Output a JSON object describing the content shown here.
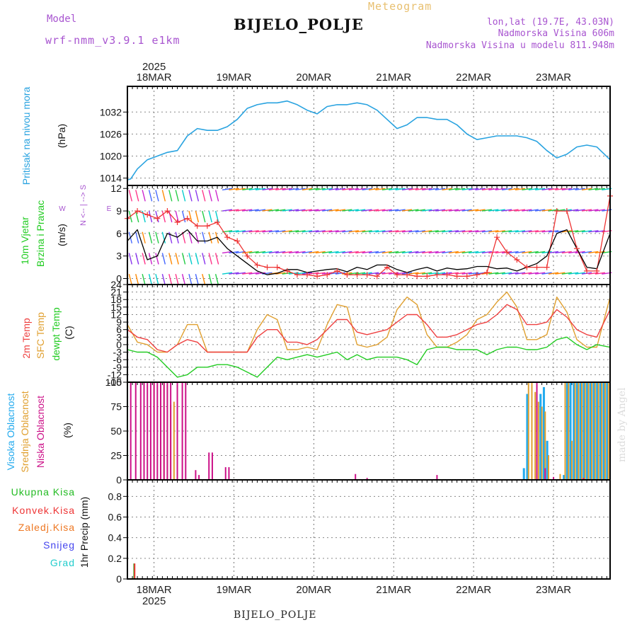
{
  "header": {
    "model_label": "Model",
    "model_name": "wrf-nmm_v3.9.1 e1km",
    "title": "BIJELO_POLJE",
    "subtitle": "Meteogram",
    "lonlat": "lon,lat (19.7E, 43.03N)",
    "elevation": "Nadmorska Visina 606m",
    "model_elevation": "Nadmorska Visina u modelu 811.948m",
    "footer_station": "BIJELO_POLJE",
    "watermark": "made by Angel"
  },
  "time_axis": {
    "year": "2025",
    "days": [
      "18MAR",
      "19MAR",
      "20MAR",
      "21MAR",
      "22MAR",
      "23MAR"
    ]
  },
  "colors": {
    "pressure": "#29a3e0",
    "wind_speed": "#000000",
    "gust": "#ee3333",
    "temp_2m": "#ee4040",
    "temp_sfc": "#e0a030",
    "dewpoint": "#22cc22",
    "cloud_high": "#22aaee",
    "cloud_mid": "#e0a030",
    "cloud_low": "#cc1188",
    "precip_total": "#22bb22",
    "precip_conv": "#ee3333"
  },
  "panels": {
    "pressure": {
      "label": "Pritisak na nivou mora",
      "unit": "(hPa)",
      "ticks": [
        "1014",
        "1020",
        "1026",
        "1032"
      ]
    },
    "wind": {
      "label_1": "10m Vjetar",
      "label_2": "Brzina i Pravac",
      "unit": "(m/s)",
      "ticks": [
        "0",
        "3",
        "6",
        "9",
        "12"
      ],
      "compass_n": "N",
      "compass_s": "S",
      "compass_e": "E",
      "compass_w": "W",
      "compass_arrows": "<-- | -->"
    },
    "temperature": {
      "label_2m": "2m Temp",
      "label_sfc": "SFC Temp",
      "label_dew": "dewpt Temp",
      "unit": "(C)",
      "ticks": [
        "-15",
        "-12",
        "-9",
        "-6",
        "-3",
        "0",
        "3",
        "6",
        "9",
        "12",
        "15",
        "18",
        "21",
        "24"
      ]
    },
    "clouds": {
      "label_high": "Visoka Oblacnost",
      "label_mid": "Srednja Oblacnost",
      "label_low": "Niska Oblacnost",
      "unit": "(%)",
      "ticks": [
        "0",
        "25",
        "50",
        "75",
        "100"
      ]
    },
    "precip": {
      "label_total": "Ukupna Kisa",
      "label_conv": "Konvek.Kisa",
      "label_frz": "Zaledj.Kisa",
      "label_snow": "Snijeg",
      "label_hail": "Grad",
      "unit": "1hr Precip (mm)",
      "ticks": [
        "0",
        "0.2",
        "0.4",
        "0.6",
        "0.8"
      ]
    }
  },
  "chart_data": [
    {
      "type": "line",
      "title": "Pritisak na nivou mora",
      "ylabel": "(hPa)",
      "ylim": [
        1012,
        1039
      ],
      "x": [
        0,
        2,
        6,
        12,
        18,
        24,
        30,
        36,
        42,
        48,
        54,
        60,
        66,
        72,
        78,
        84,
        90,
        96,
        102,
        108,
        114,
        120,
        126,
        132,
        138,
        144,
        150,
        156,
        162,
        168,
        174,
        180,
        186,
        192,
        198,
        204,
        210,
        216,
        222,
        228,
        234,
        240,
        246,
        252,
        258,
        264,
        270,
        276,
        282,
        290
      ],
      "series": [
        {
          "values": [
            1013.5,
            1013.8,
            1016.5,
            1019,
            1020,
            1021,
            1021.5,
            1025.5,
            1027.5,
            1027,
            1027,
            1028,
            1030,
            1033,
            1034,
            1034.5,
            1034.5,
            1035,
            1034,
            1032.5,
            1031.5,
            1033.5,
            1034,
            1034,
            1034.5,
            1034,
            1032.5,
            1030,
            1027.5,
            1028.5,
            1030.5,
            1030.5,
            1030,
            1030,
            1028.5,
            1026,
            1024.5,
            1025,
            1025.5,
            1025.5,
            1025.5,
            1025,
            1024,
            1021.5,
            1019.5,
            1020.5,
            1022.5,
            1023,
            1022.5,
            1019
          ]
        }
      ]
    },
    {
      "type": "line",
      "title": "10m Vjetar Brzina i Pravac",
      "ylabel": "(m/s)",
      "ylim": [
        -0.8,
        12.4
      ],
      "x": [
        0,
        6,
        12,
        18,
        24,
        30,
        36,
        42,
        48,
        54,
        60,
        66,
        72,
        78,
        84,
        90,
        96,
        102,
        108,
        114,
        120,
        126,
        132,
        138,
        144,
        150,
        156,
        162,
        168,
        174,
        180,
        186,
        192,
        198,
        204,
        210,
        216,
        222,
        228,
        234,
        240,
        246,
        252,
        258,
        264,
        270,
        276,
        282,
        290
      ],
      "series": [
        {
          "values": [
            5,
            6.5,
            2.5,
            3,
            6,
            5.5,
            6.5,
            5,
            5,
            5.5,
            4,
            3,
            2,
            1,
            0.5,
            0.7,
            1.2,
            1.2,
            0.8,
            1,
            1.2,
            1.3,
            0.9,
            1.5,
            1.2,
            1.8,
            1.8,
            1.2,
            0.8,
            1.2,
            1.5,
            1,
            1.4,
            1.2,
            1.3,
            1.6,
            1.6,
            1.3,
            1.4,
            1,
            1.5,
            2,
            3,
            6,
            6.5,
            4,
            1.5,
            1.3,
            6
          ]
        },
        {
          "values": [
            8,
            9,
            8.5,
            8,
            9,
            7.5,
            8,
            7,
            7,
            7.5,
            5.5,
            5,
            3,
            1.8,
            1.5,
            1.5,
            1,
            0.5,
            0.5,
            0.3,
            0.5,
            1,
            0.5,
            0.5,
            0.5,
            0.3,
            1.5,
            0.5,
            0.5,
            0.3,
            0.3,
            0.5,
            0.5,
            0.3,
            0.3,
            0.5,
            0.8,
            5.5,
            3.5,
            2.5,
            1.5,
            1.5,
            1.5,
            9,
            9,
            4,
            1,
            1,
            11
          ]
        }
      ]
    },
    {
      "type": "line",
      "title": "2m Temp / SFC Temp / dewpt Temp",
      "ylabel": "(C)",
      "ylim": [
        -15,
        24
      ],
      "x": [
        0,
        6,
        12,
        18,
        24,
        30,
        36,
        42,
        48,
        54,
        60,
        66,
        72,
        78,
        84,
        90,
        96,
        102,
        108,
        114,
        120,
        126,
        132,
        138,
        144,
        150,
        156,
        162,
        168,
        174,
        180,
        186,
        192,
        198,
        204,
        210,
        216,
        222,
        228,
        234,
        240,
        246,
        252,
        258,
        264,
        270,
        276,
        282,
        290
      ],
      "series": [
        {
          "name": "2m Temp",
          "values": [
            6,
            3,
            2,
            -2,
            -3,
            0,
            2,
            1,
            -3,
            -3,
            -3,
            -3,
            -3,
            3,
            6,
            6,
            1,
            1,
            0,
            2,
            6,
            10,
            10,
            5,
            4,
            5,
            6,
            9,
            12,
            12,
            8,
            3,
            3,
            4,
            6,
            8,
            9,
            12,
            16,
            14,
            8,
            8,
            9,
            14,
            11,
            6,
            4,
            3,
            14
          ]
        },
        {
          "name": "SFC Temp",
          "values": [
            8,
            1,
            0,
            -3,
            -3,
            0,
            8,
            8,
            -3,
            -3,
            -3,
            -3,
            -3,
            6,
            12,
            10,
            -2,
            -2,
            -1,
            -2,
            8,
            16,
            15,
            0,
            -1,
            0,
            3,
            14,
            19,
            16,
            4,
            -1,
            -1,
            1,
            4,
            10,
            12,
            17,
            21,
            15,
            2,
            2,
            4,
            19,
            13,
            2,
            -1,
            -1,
            19
          ]
        },
        {
          "name": "dewpt Temp",
          "values": [
            -2,
            -3,
            -3,
            -5,
            -9,
            -13,
            -12,
            -9,
            -9,
            -8,
            -8,
            -9,
            -11,
            -13,
            -9,
            -5,
            -6,
            -5,
            -4,
            -5,
            -4,
            -3,
            -6,
            -4,
            -6,
            -5,
            -5,
            -5,
            -6,
            -8,
            -2,
            -1,
            -1,
            -2,
            -2,
            -2,
            -4,
            -2,
            -1,
            -1,
            -2,
            -2,
            -1,
            2,
            3,
            0,
            -2,
            0,
            -1
          ]
        }
      ]
    },
    {
      "type": "bar",
      "title": "Visoka / Srednja / Niska Oblacnost",
      "ylabel": "(%)",
      "ylim": [
        0,
        100
      ],
      "series": [
        {
          "name": "Visoka Oblacnost",
          "x": [
            238,
            240,
            248,
            250,
            252,
            262,
            264,
            266,
            268,
            270,
            272,
            274,
            276,
            278,
            280,
            282,
            284,
            286,
            288
          ],
          "values": [
            12,
            88,
            88,
            95,
            40,
            5,
            100,
            100,
            100,
            100,
            100,
            100,
            100,
            100,
            100,
            100,
            100,
            100,
            100
          ]
        },
        {
          "name": "Srednja Oblacnost",
          "x": [
            16,
            20,
            22,
            24,
            26,
            28,
            241,
            243,
            245,
            247,
            249,
            251,
            253,
            260,
            263,
            265,
            267,
            269,
            271,
            273,
            275,
            277,
            279,
            281,
            283,
            285,
            287,
            289
          ],
          "values": [
            100,
            100,
            100,
            100,
            77,
            80,
            100,
            100,
            90,
            80,
            75,
            70,
            25,
            6,
            100,
            100,
            40,
            100,
            100,
            100,
            100,
            100,
            100,
            100,
            100,
            100,
            100,
            100
          ]
        },
        {
          "name": "Niska Oblacnost",
          "x": [
            2,
            5,
            8,
            10,
            12,
            14,
            16,
            18,
            20,
            22,
            24,
            26,
            30,
            33,
            35,
            41,
            43,
            49,
            51,
            59,
            61,
            137,
            144,
            186,
            246,
            251,
            256,
            274
          ],
          "values": [
            100,
            100,
            100,
            100,
            100,
            100,
            100,
            100,
            100,
            100,
            100,
            100,
            100,
            100,
            100,
            10,
            5,
            28,
            28,
            13,
            13,
            6,
            2,
            5,
            100,
            12,
            3,
            2
          ]
        }
      ]
    },
    {
      "type": "bar",
      "title": "1hr Precip",
      "ylabel": "1hr Precip (mm)",
      "ylim": [
        0,
        0.96
      ],
      "series": [
        {
          "name": "Ukupna Kisa",
          "x": [
            4
          ],
          "values": [
            0.15
          ]
        },
        {
          "name": "Konvek.Kisa",
          "x": [
            3.5
          ],
          "values": [
            0.15
          ]
        }
      ]
    }
  ]
}
